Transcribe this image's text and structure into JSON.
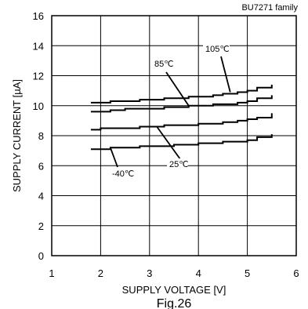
{
  "chart_data": {
    "type": "line",
    "family_label": "BU7271 family",
    "caption": "Fig.26",
    "xlabel": "SUPPLY VOLTAGE [V]",
    "ylabel": "SUPPLY CURRENT [µA]",
    "xlim": [
      1,
      6
    ],
    "ylim": [
      0,
      16
    ],
    "xticks": [
      "1",
      "2",
      "3",
      "4",
      "5",
      "6"
    ],
    "yticks": [
      "0",
      "2",
      "4",
      "6",
      "8",
      "10",
      "12",
      "14",
      "16"
    ],
    "grid": true,
    "series": [
      {
        "name": "105℃",
        "x": [
          1.8,
          2.0,
          2.2,
          2.5,
          2.8,
          3.0,
          3.3,
          3.5,
          3.8,
          4.0,
          4.3,
          4.5,
          4.8,
          5.0,
          5.2,
          5.5
        ],
        "values": [
          10.2,
          10.2,
          10.3,
          10.3,
          10.4,
          10.4,
          10.5,
          10.5,
          10.6,
          10.6,
          10.7,
          10.8,
          10.9,
          11.0,
          11.2,
          11.4
        ]
      },
      {
        "name": "85℃",
        "x": [
          1.8,
          2.0,
          2.2,
          2.5,
          2.8,
          3.0,
          3.3,
          3.5,
          3.8,
          4.0,
          4.3,
          4.5,
          4.8,
          5.0,
          5.2,
          5.5
        ],
        "values": [
          9.6,
          9.6,
          9.7,
          9.8,
          9.8,
          9.8,
          9.9,
          9.9,
          10.0,
          10.0,
          10.1,
          10.1,
          10.2,
          10.3,
          10.5,
          10.7
        ]
      },
      {
        "name": "25℃",
        "x": [
          1.8,
          2.0,
          2.2,
          2.5,
          2.8,
          3.0,
          3.3,
          3.5,
          3.8,
          4.0,
          4.3,
          4.5,
          4.8,
          5.0,
          5.2,
          5.5
        ],
        "values": [
          8.4,
          8.5,
          8.5,
          8.5,
          8.6,
          8.6,
          8.7,
          8.7,
          8.7,
          8.8,
          8.8,
          8.9,
          9.0,
          9.1,
          9.2,
          9.5
        ]
      },
      {
        "name": "-40℃",
        "x": [
          1.8,
          2.0,
          2.2,
          2.5,
          2.8,
          3.0,
          3.3,
          3.5,
          3.8,
          4.0,
          4.3,
          4.5,
          4.8,
          5.0,
          5.2,
          5.5
        ],
        "values": [
          7.1,
          7.1,
          7.2,
          7.2,
          7.3,
          7.3,
          7.3,
          7.4,
          7.4,
          7.5,
          7.5,
          7.6,
          7.6,
          7.7,
          7.9,
          8.1
        ]
      }
    ],
    "annotations": [
      {
        "text": "105℃",
        "series": 0
      },
      {
        "text": "85℃",
        "series": 1
      },
      {
        "text": "25℃",
        "series": 2
      },
      {
        "text": "-40℃",
        "series": 3
      }
    ]
  }
}
